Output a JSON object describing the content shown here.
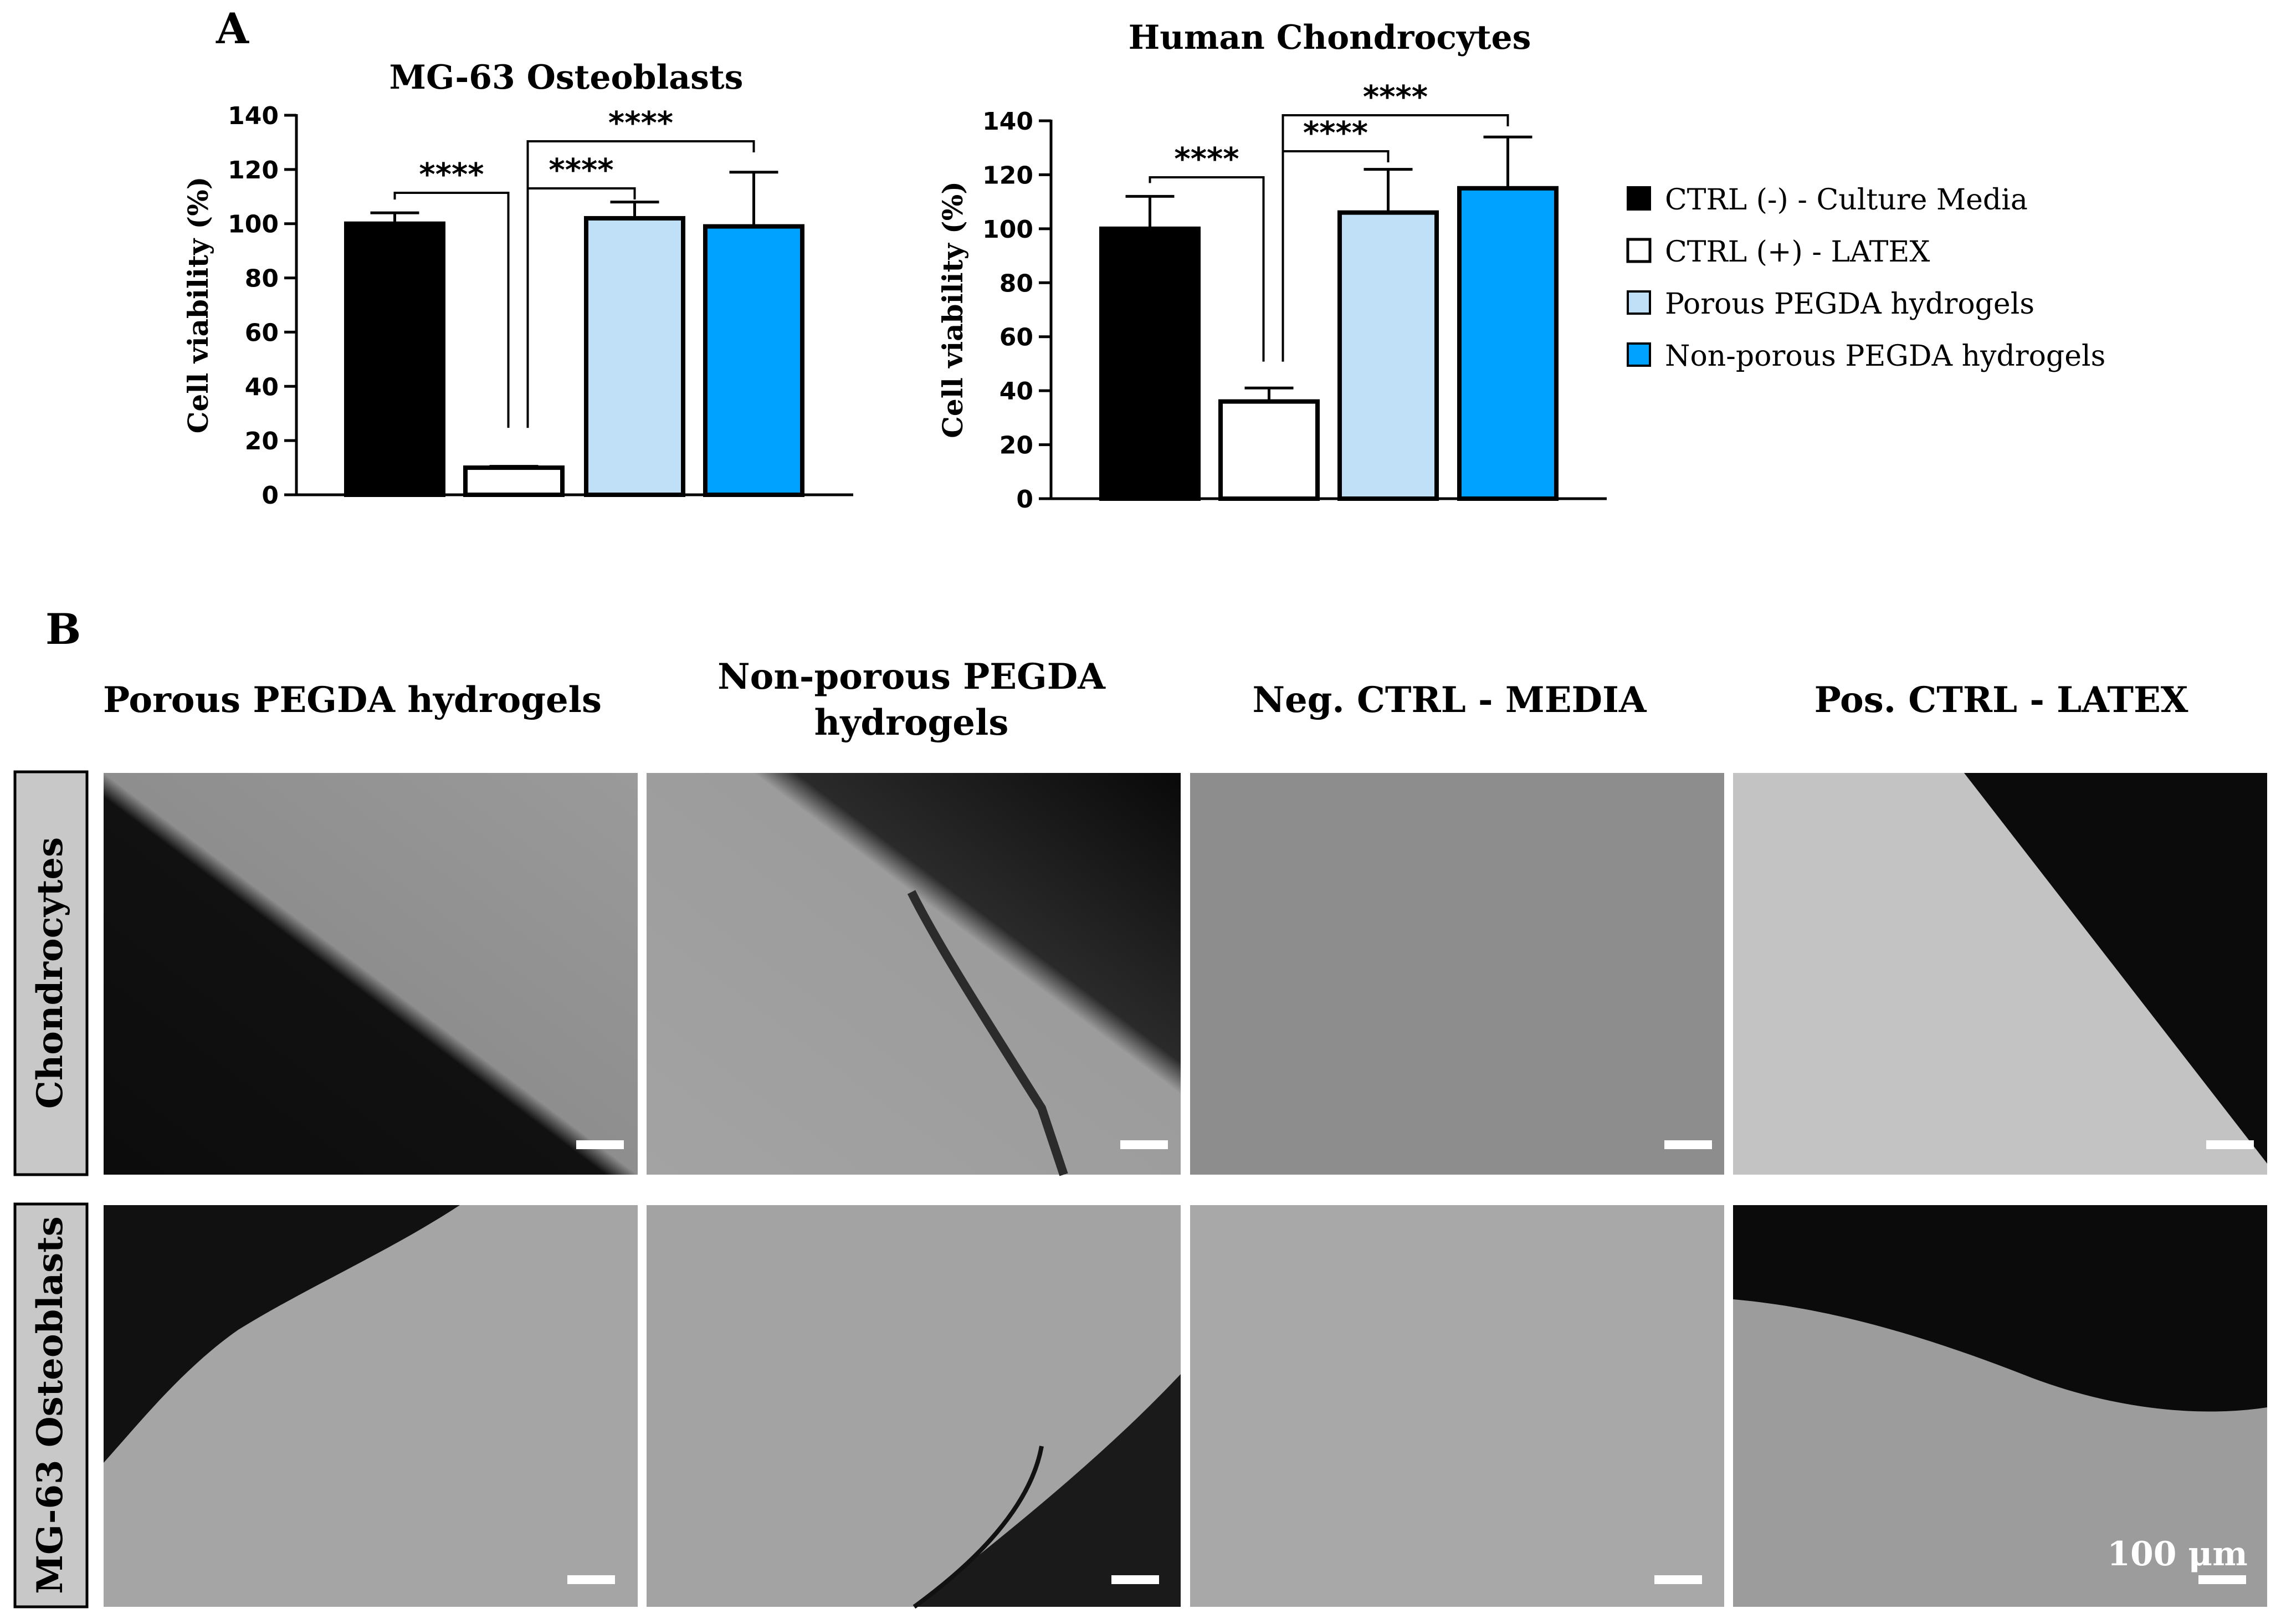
{
  "panel_a_label": "A",
  "panel_b_label": "B",
  "chart_data": [
    {
      "type": "bar",
      "title": "MG-63 Osteoblasts",
      "ylabel": "Cell viability (%)",
      "xlabel": "",
      "ylim": [
        0,
        140
      ],
      "yticks": [
        0,
        20,
        40,
        60,
        80,
        100,
        120,
        140
      ],
      "categories": [
        "CTRL (-) - Culture Media",
        "CTRL (+) - LATEX",
        "Porous PEGDA hydrogels",
        "Non-porous PEGDA hydrogels"
      ],
      "values": [
        100,
        10,
        102,
        99
      ],
      "errors": [
        4,
        0.5,
        6,
        20
      ],
      "significance": [
        {
          "from": 0,
          "to": 1,
          "label": "****"
        },
        {
          "from": 1,
          "to": 2,
          "label": "****"
        },
        {
          "from": 1,
          "to": 3,
          "label": "****"
        }
      ]
    },
    {
      "type": "bar",
      "title": "Human Chondrocytes",
      "ylabel": "Cell viability (%)",
      "xlabel": "",
      "ylim": [
        0,
        140
      ],
      "yticks": [
        0,
        20,
        40,
        60,
        80,
        100,
        120,
        140
      ],
      "categories": [
        "CTRL (-) - Culture Media",
        "CTRL (+) - LATEX",
        "Porous PEGDA hydrogels",
        "Non-porous PEGDA hydrogels"
      ],
      "values": [
        100,
        36,
        106,
        115
      ],
      "errors": [
        12,
        5,
        16,
        19
      ],
      "significance": [
        {
          "from": 0,
          "to": 1,
          "label": "****"
        },
        {
          "from": 1,
          "to": 2,
          "label": "****"
        },
        {
          "from": 1,
          "to": 3,
          "label": "****"
        }
      ]
    }
  ],
  "legend": [
    {
      "label": "CTRL (-) - Culture Media",
      "color": "#000000"
    },
    {
      "label": "CTRL (+) - LATEX",
      "color": "#ffffff"
    },
    {
      "label": "Porous PEGDA hydrogels",
      "color": "#bfe0f7"
    },
    {
      "label": "Non-porous PEGDA hydrogels",
      "color": "#00a2ff"
    }
  ],
  "microscopy": {
    "columns": [
      "Porous PEGDA hydrogels",
      "Non-porous PEGDA",
      "hydrogels",
      "Neg. CTRL - MEDIA",
      "Pos. CTRL - LATEX"
    ],
    "rows": [
      "Chondrocytes",
      "MG-63 Osteoblasts"
    ],
    "scale_bar_label": "100 μm"
  }
}
